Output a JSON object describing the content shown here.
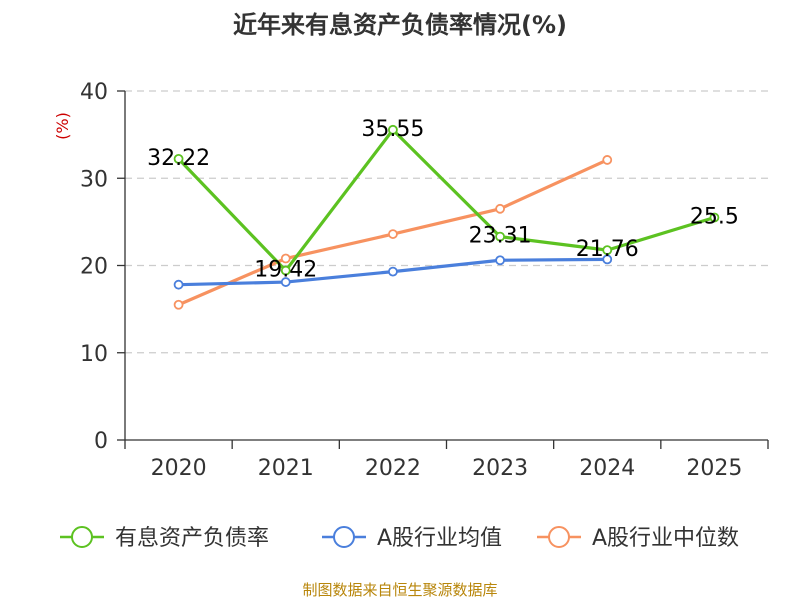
{
  "chart_data": {
    "type": "line",
    "title": "近年来有息资产负债率情况(%)",
    "ylabel": "(%)",
    "xlabel": "",
    "ylim": [
      0,
      40
    ],
    "yticks": [
      0,
      10,
      20,
      30,
      40
    ],
    "grid": true,
    "categories": [
      "2020",
      "2021",
      "2022",
      "2023",
      "2024",
      "2025"
    ],
    "series": [
      {
        "name": "有息资产负债率",
        "color": "#5cc221",
        "values": [
          32.22,
          19.42,
          35.55,
          23.31,
          21.76,
          25.5
        ],
        "labels": [
          "32.22",
          "19.42",
          "35.55",
          "23.31",
          "21.76",
          "25.5"
        ]
      },
      {
        "name": "A股行业均值",
        "color": "#4a7fdc",
        "values": [
          17.8,
          18.1,
          19.3,
          20.6,
          20.7,
          null
        ]
      },
      {
        "name": "A股行业中位数",
        "color": "#f79260",
        "values": [
          15.5,
          20.8,
          23.6,
          26.5,
          32.1,
          null
        ]
      }
    ],
    "legend_position": "bottom",
    "source_text": "制图数据来自恒生聚源数据库",
    "colors": {
      "title": "#333333",
      "ylabel": "#cc0000",
      "grid": "#cccccc",
      "axis": "#333333",
      "source": "#b8860b"
    }
  }
}
